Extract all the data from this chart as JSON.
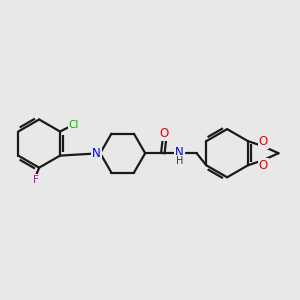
{
  "bg_color": "#e8e8e8",
  "bond_color": "#1a1a1a",
  "bond_width": 1.6,
  "atom_colors": {
    "Cl": "#00bb00",
    "F": "#cc00cc",
    "N": "#0000ee",
    "O": "#ee0000",
    "H": "#333333",
    "C": "#1a1a1a"
  },
  "figsize": [
    3.0,
    3.0
  ],
  "dpi": 100
}
